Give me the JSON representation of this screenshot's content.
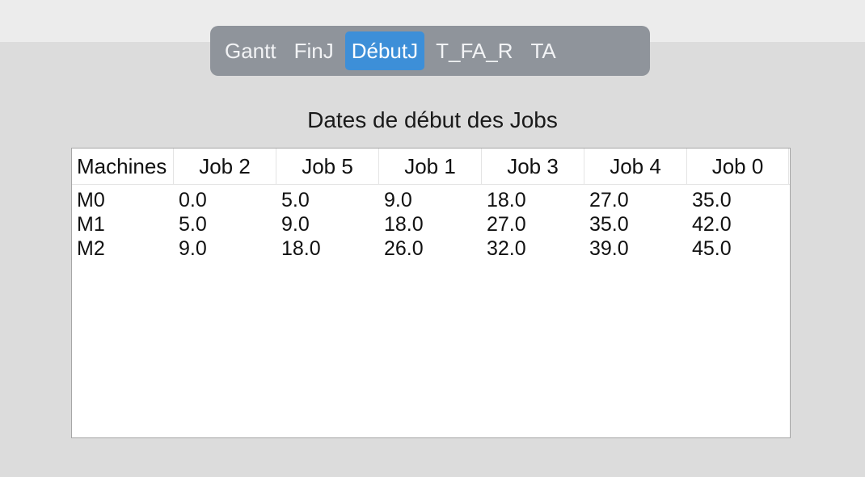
{
  "tabs": [
    {
      "label": "Gantt",
      "active": false
    },
    {
      "label": "FinJ",
      "active": false
    },
    {
      "label": "DébutJ",
      "active": true
    },
    {
      "label": "T_FA_R",
      "active": false
    },
    {
      "label": "TA",
      "active": false
    }
  ],
  "section_title": "Dates de début des Jobs",
  "table": {
    "headers": [
      "Machines",
      "Job 2",
      "Job 5",
      "Job 1",
      "Job 3",
      "Job 4",
      "Job 0"
    ],
    "rows": [
      [
        "M0",
        "0.0",
        "5.0",
        "9.0",
        "18.0",
        "27.0",
        "35.0"
      ],
      [
        "M1",
        "5.0",
        "9.0",
        "18.0",
        "27.0",
        "35.0",
        "42.0"
      ],
      [
        "M2",
        "9.0",
        "18.0",
        "26.0",
        "32.0",
        "39.0",
        "45.0"
      ]
    ]
  },
  "colors": {
    "tab_bar": "#8f949b",
    "tab_active": "#3d8fd8",
    "background": "#dcdcdc"
  }
}
